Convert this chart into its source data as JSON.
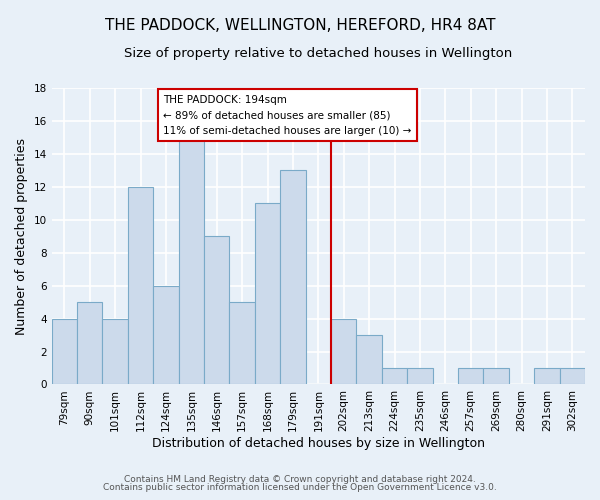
{
  "title": "THE PADDOCK, WELLINGTON, HEREFORD, HR4 8AT",
  "subtitle": "Size of property relative to detached houses in Wellington",
  "xlabel": "Distribution of detached houses by size in Wellington",
  "ylabel": "Number of detached properties",
  "footnote1": "Contains HM Land Registry data © Crown copyright and database right 2024.",
  "footnote2": "Contains public sector information licensed under the Open Government Licence v3.0.",
  "bar_labels": [
    "79sqm",
    "90sqm",
    "101sqm",
    "112sqm",
    "124sqm",
    "135sqm",
    "146sqm",
    "157sqm",
    "168sqm",
    "179sqm",
    "191sqm",
    "202sqm",
    "213sqm",
    "224sqm",
    "235sqm",
    "246sqm",
    "257sqm",
    "269sqm",
    "280sqm",
    "291sqm",
    "302sqm"
  ],
  "bar_values": [
    4,
    5,
    4,
    12,
    6,
    15,
    9,
    5,
    11,
    13,
    0,
    4,
    3,
    1,
    1,
    0,
    1,
    1,
    0,
    1,
    1
  ],
  "bar_color": "#ccdaeb",
  "bar_edge_color": "#7aaac8",
  "annotation_box_text": "THE PADDOCK: 194sqm\n← 89% of detached houses are smaller (85)\n11% of semi-detached houses are larger (10) →",
  "annotation_box_edge_color": "#cc0000",
  "annotation_box_face_color": "#ffffff",
  "vline_color": "#cc0000",
  "ylim": [
    0,
    18
  ],
  "yticks": [
    0,
    2,
    4,
    6,
    8,
    10,
    12,
    14,
    16,
    18
  ],
  "background_color": "#e8f0f8",
  "grid_color": "#ffffff",
  "title_fontsize": 11,
  "subtitle_fontsize": 9.5,
  "axis_label_fontsize": 9,
  "tick_fontsize": 7.5,
  "footnote_fontsize": 6.5
}
